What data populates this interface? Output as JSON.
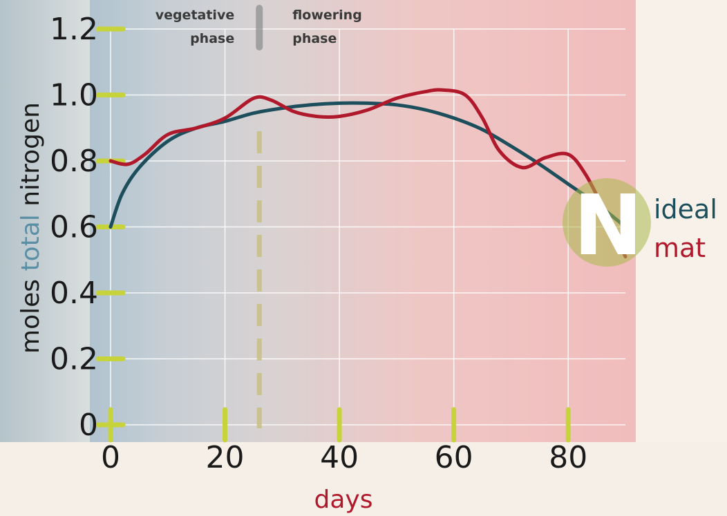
{
  "chart_data": {
    "type": "line",
    "xlabel": "days",
    "ylabel_parts": [
      "moles ",
      "total",
      " nitrogen"
    ],
    "xlim": [
      0,
      90
    ],
    "ylim": [
      0,
      1.2
    ],
    "xticks": [
      "0",
      "20",
      "40",
      "60",
      "80"
    ],
    "yticks": [
      "0",
      "0.2",
      "0.4",
      "0.6",
      "0.8",
      "1.0",
      "1.2"
    ],
    "grid": true,
    "phase_boundary_x": 26,
    "phases": [
      {
        "line1": "vegetative",
        "line2": "phase"
      },
      {
        "line1": "flowering",
        "line2": "phase"
      }
    ],
    "legend_letter": "N",
    "series": [
      {
        "name": "ideal",
        "color": "#1d4e5c",
        "x": [
          0,
          2,
          5,
          10,
          15,
          20,
          25,
          30,
          35,
          40,
          45,
          50,
          55,
          60,
          65,
          70,
          75,
          80,
          85,
          90
        ],
        "y": [
          0.6,
          0.7,
          0.78,
          0.86,
          0.9,
          0.92,
          0.945,
          0.96,
          0.97,
          0.975,
          0.975,
          0.97,
          0.955,
          0.93,
          0.895,
          0.845,
          0.79,
          0.73,
          0.67,
          0.6
        ]
      },
      {
        "name": "mat",
        "color": "#b0192b",
        "x": [
          0,
          3,
          6,
          10,
          15,
          20,
          25,
          28,
          32,
          36,
          40,
          45,
          50,
          55,
          58,
          62,
          65,
          68,
          72,
          76,
          80,
          83,
          86,
          90
        ],
        "y": [
          0.8,
          0.79,
          0.82,
          0.88,
          0.9,
          0.93,
          0.99,
          0.985,
          0.95,
          0.935,
          0.935,
          0.955,
          0.99,
          1.01,
          1.015,
          1.0,
          0.93,
          0.83,
          0.78,
          0.81,
          0.82,
          0.76,
          0.66,
          0.51
        ]
      }
    ]
  }
}
